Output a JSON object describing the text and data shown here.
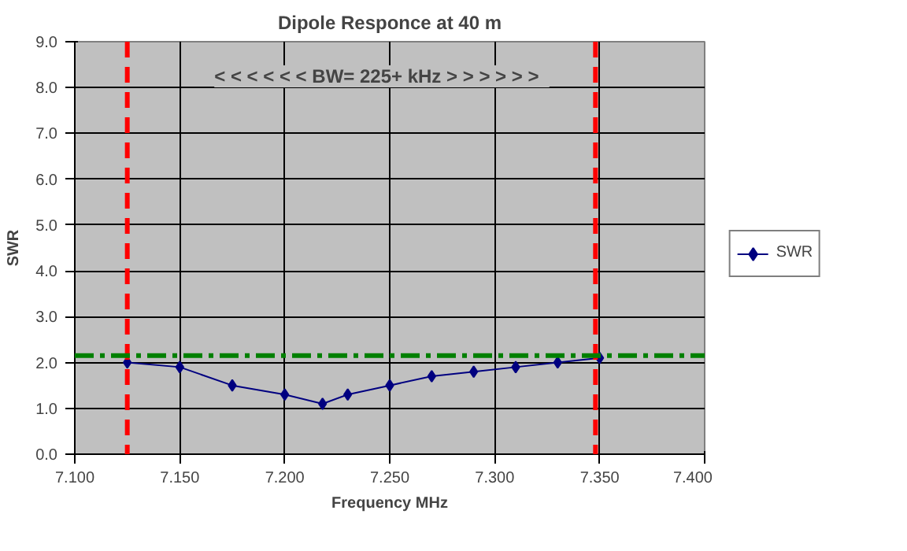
{
  "chart_data": {
    "type": "line",
    "title": "Dipole Responce at 40 m",
    "xlabel": "Frequency MHz",
    "ylabel": "SWR",
    "series": [
      {
        "name": "SWR",
        "color": "#000080",
        "x": [
          7.125,
          7.15,
          7.175,
          7.2,
          7.218,
          7.23,
          7.25,
          7.27,
          7.29,
          7.31,
          7.33,
          7.35
        ],
        "values": [
          2.0,
          1.9,
          1.5,
          1.3,
          1.1,
          1.3,
          1.5,
          1.7,
          1.8,
          1.9,
          2.0,
          2.1
        ]
      }
    ],
    "xlim": [
      7.1,
      7.4
    ],
    "xticks": [
      {
        "value": 7.1,
        "label": "7.100"
      },
      {
        "value": 7.15,
        "label": "7.150"
      },
      {
        "value": 7.2,
        "label": "7.200"
      },
      {
        "value": 7.25,
        "label": "7.250"
      },
      {
        "value": 7.3,
        "label": "7.300"
      },
      {
        "value": 7.35,
        "label": "7.350"
      },
      {
        "value": 7.4,
        "label": "7.400"
      }
    ],
    "ylim": [
      0,
      9
    ],
    "yticks": [
      {
        "value": 0,
        "label": "0.0"
      },
      {
        "value": 1,
        "label": "1.0"
      },
      {
        "value": 2,
        "label": "2.0"
      },
      {
        "value": 3,
        "label": "3.0"
      },
      {
        "value": 4,
        "label": "4.0"
      },
      {
        "value": 5,
        "label": "5.0"
      },
      {
        "value": 6,
        "label": "6.0"
      },
      {
        "value": 7,
        "label": "7.0"
      },
      {
        "value": 8,
        "label": "8.0"
      },
      {
        "value": 9,
        "label": "9.0"
      }
    ],
    "ref_lines": [
      {
        "axis": "x",
        "value": 7.125,
        "color": "#ff0000",
        "line_style": "dashed"
      },
      {
        "axis": "x",
        "value": 7.348,
        "color": "#ff0000",
        "line_style": "dashed"
      },
      {
        "axis": "y",
        "value": 2.15,
        "color": "#008000",
        "line_style": "dashdot"
      }
    ],
    "annotations": [
      "< < < < < <  BW= 225+ kHz  > > > > > >"
    ],
    "grid": true,
    "legend": "right",
    "marker": "diamond",
    "line_style": "solid"
  }
}
